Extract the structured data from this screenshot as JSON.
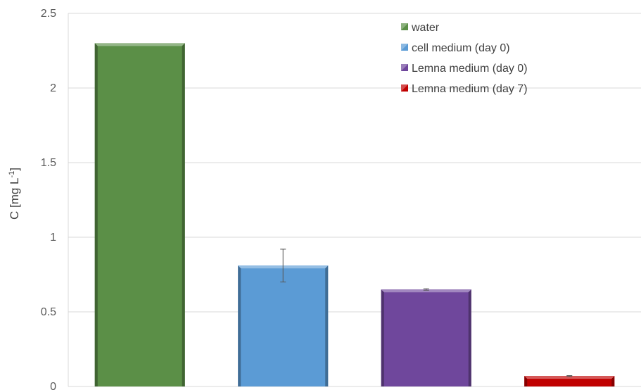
{
  "chart_data": {
    "type": "bar",
    "categories": [
      "water",
      "cell medium (day 0)",
      "Lemna medium (day 0)",
      "Lemna medium (day 7)"
    ],
    "series": [
      {
        "name": "water",
        "value": 2.3,
        "error": null,
        "color": "#5b8f47"
      },
      {
        "name": "cell medium (day 0)",
        "value": 0.81,
        "error": 0.11,
        "color": "#5b9bd5"
      },
      {
        "name": "Lemna medium (day 0)",
        "value": 0.65,
        "error": 0.005,
        "color": "#6f479c"
      },
      {
        "name": "Lemna medium (day 7)",
        "value": 0.07,
        "error": 0.003,
        "color": "#c00000"
      }
    ],
    "ylabel": {
      "main": "C [mg L",
      "sup": "-1",
      "close": "]"
    },
    "ylim": [
      0,
      2.5
    ],
    "yticks": [
      "0",
      "0.5",
      "1",
      "1.5",
      "2",
      "2.5"
    ],
    "grid": true,
    "legend_position": "top-right"
  }
}
